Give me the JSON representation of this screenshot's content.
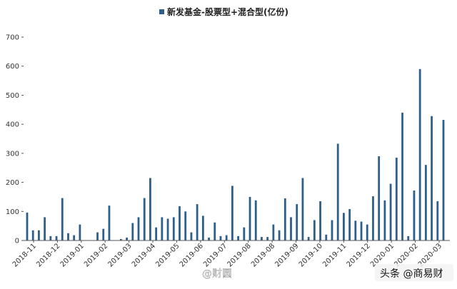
{
  "chart_data": {
    "type": "bar",
    "series": [
      {
        "name": "新发基金-股票型+混合型(亿份)",
        "color": "#2E5F8A",
        "values": [
          96,
          35,
          35,
          80,
          15,
          15,
          146,
          25,
          18,
          55,
          0,
          0,
          28,
          40,
          120,
          0,
          5,
          10,
          60,
          80,
          146,
          215,
          45,
          80,
          75,
          80,
          118,
          100,
          28,
          125,
          85,
          10,
          62,
          15,
          18,
          188,
          15,
          45,
          150,
          138,
          12,
          12,
          55,
          35,
          145,
          80,
          125,
          215,
          12,
          70,
          135,
          20,
          70,
          333,
          95,
          108,
          68,
          65,
          55,
          152,
          290,
          138,
          195,
          285,
          440,
          15,
          172,
          590,
          260,
          428,
          135,
          415
        ]
      }
    ],
    "x_tick_labels": [
      "2018-11",
      "2018-12",
      "2019-01",
      "2019-02",
      "2019-03",
      "2019-04",
      "2019-05",
      "2019-06",
      "2019-07",
      "2019-08",
      "2019-08",
      "2019-09",
      "2019-10",
      "2019-11",
      "2019-12",
      "2020-01",
      "2020-02",
      "2020-03"
    ],
    "y_ticks": [
      0,
      100,
      200,
      300,
      400,
      500,
      600,
      700
    ],
    "ylim": [
      0,
      700
    ],
    "legend": "top-center",
    "grid": false
  },
  "watermark": {
    "left": "@财圆",
    "right": "头条 @商易财"
  }
}
